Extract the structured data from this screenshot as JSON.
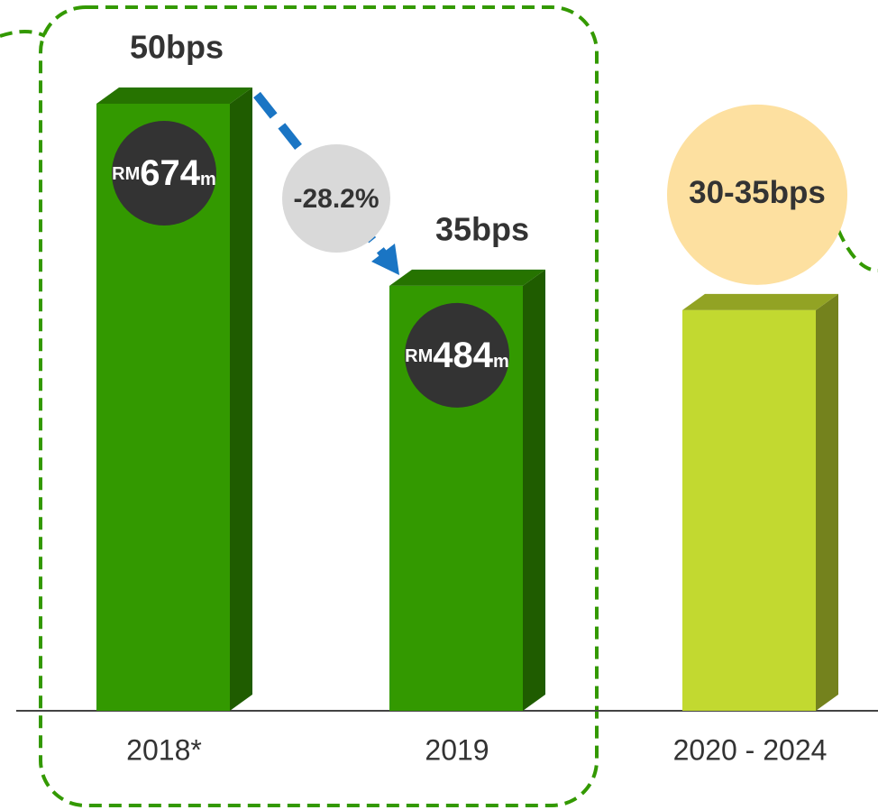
{
  "chart_data": {
    "type": "bar3d",
    "categories": [
      "2018*",
      "2019",
      "2020 - 2024"
    ],
    "values": [
      50,
      35,
      33
    ],
    "value_labels": [
      "50bps",
      "35bps",
      "30-35bps"
    ],
    "colors": [
      "#339900",
      "#339900",
      "#c2d930"
    ],
    "amount_prefix": "RM",
    "amount_suffix": "m",
    "amounts": [
      674,
      484,
      null
    ],
    "annotation": "-28.2%"
  }
}
